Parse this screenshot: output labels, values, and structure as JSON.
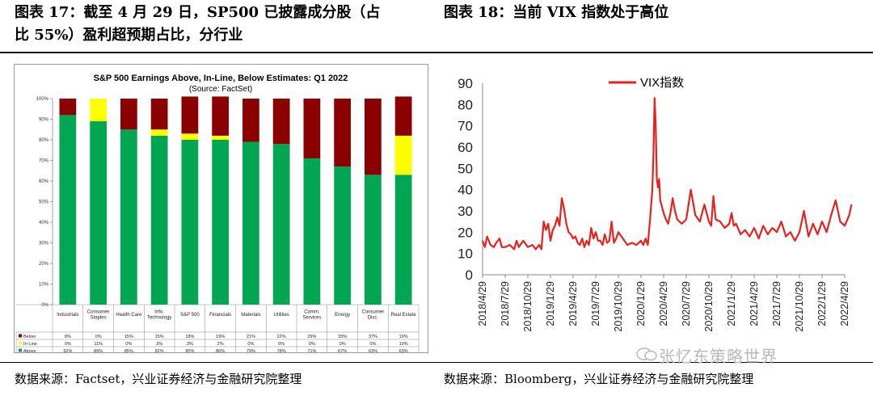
{
  "left_caption": {
    "line1": "图表 17：截至 4 月 29 日，SP500 已披露成分股（占",
    "line2": "比 55%）盈利超预期占比，分行业"
  },
  "right_caption": "图表 18：当前 VIX 指数处于高位",
  "left_source": "数据来源：Factset，兴业证券经济与金融研究院整理",
  "right_source": "数据来源：Bloomberg，兴业证券经济与金融研究院整理",
  "watermark": "张忆东策略世界",
  "colors": {
    "below": "#8b0000",
    "inline": "#ffff00",
    "above": "#00a651",
    "vix": "#e8211e"
  },
  "chart_data": [
    {
      "type": "bar",
      "stacked": true,
      "title": "S&P 500 Earnings Above, In-Line, Below Estimates: Q1 2022",
      "subtitle": "(Source: FactSet)",
      "categories": [
        "Industrials",
        "Consumer Staples",
        "Health Care",
        "Info. Technology",
        "S&P 500",
        "Financials",
        "Materials",
        "Utilities",
        "Comm. Services",
        "Energy",
        "Consumer Disc.",
        "Real Estate"
      ],
      "category_lines": [
        [
          "Industrials"
        ],
        [
          "Consumer",
          "Staples"
        ],
        [
          "Health Care"
        ],
        [
          "Info.",
          "Technology"
        ],
        [
          "S&P 500"
        ],
        [
          "Financials"
        ],
        [
          "Materials"
        ],
        [
          "Utilities"
        ],
        [
          "Comm.",
          "Services"
        ],
        [
          "Energy"
        ],
        [
          "Consumer",
          "Disc."
        ],
        [
          "Real Estate"
        ]
      ],
      "series": [
        {
          "name": "Below",
          "values": [
            8,
            0,
            15,
            15,
            18,
            19,
            21,
            22,
            29,
            33,
            37,
            19
          ],
          "labels": [
            "8%",
            "0%",
            "15%",
            "15%",
            "18%",
            "19%",
            "21%",
            "22%",
            "29%",
            "33%",
            "37%",
            "19%"
          ]
        },
        {
          "name": "In-Line",
          "values": [
            0,
            11,
            0,
            3,
            3,
            2,
            0,
            0,
            0,
            0,
            0,
            19
          ],
          "labels": [
            "0%",
            "11%",
            "0%",
            "3%",
            "3%",
            "2%",
            "0%",
            "0%",
            "0%",
            "0%",
            "0%",
            "19%"
          ]
        },
        {
          "name": "Above",
          "values": [
            92,
            89,
            85,
            82,
            80,
            80,
            79,
            78,
            71,
            67,
            63,
            63
          ],
          "labels": [
            "92%",
            "89%",
            "85%",
            "82%",
            "80%",
            "80%",
            "79%",
            "78%",
            "71%",
            "67%",
            "63%",
            "63%"
          ]
        }
      ],
      "y_ticks": [
        "0%",
        "10%",
        "20%",
        "30%",
        "40%",
        "50%",
        "60%",
        "70%",
        "80%",
        "90%",
        "100%"
      ],
      "ylim": [
        0,
        100
      ]
    },
    {
      "type": "line",
      "legend": "VIX指数",
      "ylim": [
        0,
        90
      ],
      "y_ticks": [
        0,
        10,
        20,
        30,
        40,
        50,
        60,
        70,
        80,
        90
      ],
      "x_ticks": [
        "2018/4/29",
        "2018/7/29",
        "2018/10/29",
        "2019/1/29",
        "2019/4/29",
        "2019/7/29",
        "2019/10/29",
        "2020/1/29",
        "2020/4/29",
        "2020/7/29",
        "2020/10/29",
        "2021/1/29",
        "2021/4/29",
        "2021/7/29",
        "2021/10/29",
        "2022/1/29",
        "2022/4/29"
      ],
      "series": [
        {
          "name": "VIX指数",
          "x": [
            0,
            0.1,
            0.2,
            0.35,
            0.5,
            0.6,
            0.75,
            0.85,
            1,
            1.2,
            1.4,
            1.5,
            1.6,
            1.8,
            2,
            2.2,
            2.35,
            2.5,
            2.6,
            2.7,
            2.8,
            2.9,
            3,
            3.1,
            3.2,
            3.3,
            3.4,
            3.5,
            3.6,
            3.7,
            3.8,
            3.9,
            4,
            4.1,
            4.2,
            4.3,
            4.4,
            4.5,
            4.6,
            4.7,
            4.8,
            4.9,
            5,
            5.1,
            5.2,
            5.3,
            5.4,
            5.5,
            5.6,
            5.7,
            5.8,
            5.9,
            6,
            6.2,
            6.4,
            6.6,
            6.8,
            7,
            7.1,
            7.2,
            7.3,
            7.4,
            7.5,
            7.55,
            7.6,
            7.65,
            7.7,
            7.75,
            7.8,
            7.85,
            7.9,
            8,
            8.1,
            8.2,
            8.3,
            8.4,
            8.5,
            8.6,
            8.8,
            9,
            9.2,
            9.4,
            9.6,
            9.8,
            10,
            10.1,
            10.2,
            10.3,
            10.5,
            10.7,
            10.9,
            11,
            11.1,
            11.2,
            11.4,
            11.6,
            11.8,
            12,
            12.2,
            12.4,
            12.6,
            12.8,
            13,
            13.2,
            13.4,
            13.6,
            13.8,
            14,
            14.2,
            14.4,
            14.6,
            14.8,
            15,
            15.2,
            15.4,
            15.6,
            15.8,
            16,
            16.2,
            16.3
          ],
          "values": [
            16,
            13,
            18,
            14,
            13,
            15,
            17,
            13,
            13,
            14,
            12,
            16,
            13,
            16,
            13,
            14,
            12,
            14,
            12,
            25,
            21,
            24,
            16,
            21,
            23,
            27,
            23,
            36,
            31,
            24,
            20,
            19,
            17,
            18,
            15,
            14,
            17,
            13,
            16,
            14,
            22,
            17,
            20,
            16,
            16,
            14,
            19,
            15,
            16,
            25,
            15,
            17,
            20,
            17,
            14,
            15,
            14,
            16,
            14,
            17,
            14,
            26,
            40,
            57,
            83,
            70,
            45,
            41,
            45,
            35,
            33,
            29,
            26,
            24,
            29,
            36,
            30,
            26,
            24,
            26,
            40,
            28,
            25,
            33,
            25,
            23,
            37,
            26,
            25,
            22,
            24,
            29,
            23,
            24,
            19,
            21,
            18,
            22,
            17,
            23,
            19,
            22,
            20,
            25,
            18,
            20,
            16,
            20,
            30,
            18,
            24,
            19,
            25,
            20,
            28,
            35,
            25,
            23,
            28,
            33
          ]
        }
      ]
    }
  ]
}
